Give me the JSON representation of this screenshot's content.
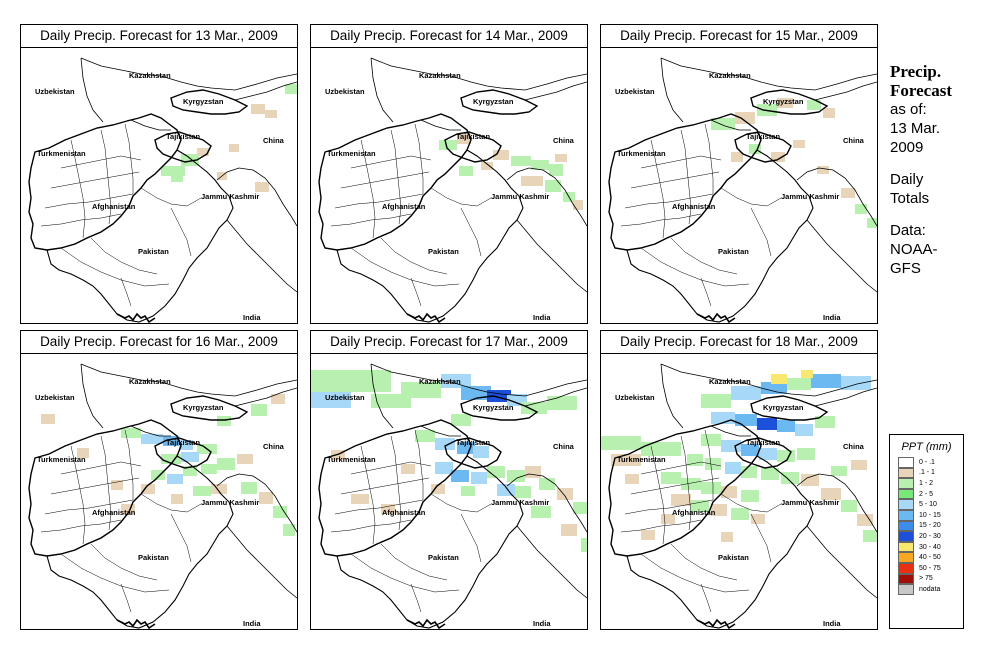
{
  "panels": [
    {
      "title": "Daily Precip. Forecast for  13 Mar., 2009",
      "day": 0
    },
    {
      "title": "Daily Precip. Forecast for  14 Mar., 2009",
      "day": 1
    },
    {
      "title": "Daily Precip. Forecast for  15 Mar., 2009",
      "day": 2
    },
    {
      "title": "Daily Precip. Forecast for  16 Mar., 2009",
      "day": 3
    },
    {
      "title": "Daily Precip. Forecast for  17 Mar., 2009",
      "day": 4
    },
    {
      "title": "Daily Precip. Forecast for  18 Mar., 2009",
      "day": 5
    }
  ],
  "map_labels": {
    "kazakhstan": "Kazakhstan",
    "uzbekistan": "Uzbekistan",
    "kyrgyzstan": "Kyrgyzstan",
    "tajikistan": "Tajikistan",
    "turkmenistan": "Turkmenistan",
    "china": "China",
    "afghanistan": "Afghanistan",
    "jammu_kashmir": "Jammu Kashmir",
    "pakistan": "Pakistan",
    "india": "India"
  },
  "side": {
    "heading": "Precip. Forecast",
    "as_of_label": "as of:",
    "as_of_date1": "13 Mar.",
    "as_of_date2": "2009",
    "totals1": "Daily",
    "totals2": "Totals",
    "data1": "Data:",
    "data2": "NOAA-",
    "data3": "GFS"
  },
  "legend": {
    "title": "PPT (mm)",
    "items": [
      {
        "label": "0 - .1",
        "color": "#ffffff"
      },
      {
        "label": ".1 - 1",
        "color": "#e8d4b8"
      },
      {
        "label": "1 - 2",
        "color": "#b8f0b0"
      },
      {
        "label": "2 - 5",
        "color": "#78e878"
      },
      {
        "label": "5 - 10",
        "color": "#a8d8f8"
      },
      {
        "label": "10 - 15",
        "color": "#6cb8f0"
      },
      {
        "label": "15 - 20",
        "color": "#3c8ce8"
      },
      {
        "label": "20 - 30",
        "color": "#1c50d8"
      },
      {
        "label": "30 - 40",
        "color": "#f8e870"
      },
      {
        "label": "40 - 50",
        "color": "#f8a820"
      },
      {
        "label": "50 - 75",
        "color": "#e83010"
      },
      {
        "label": "> 75",
        "color": "#a01008"
      },
      {
        "label": "nodata",
        "color": "#c8c8c8"
      }
    ]
  }
}
